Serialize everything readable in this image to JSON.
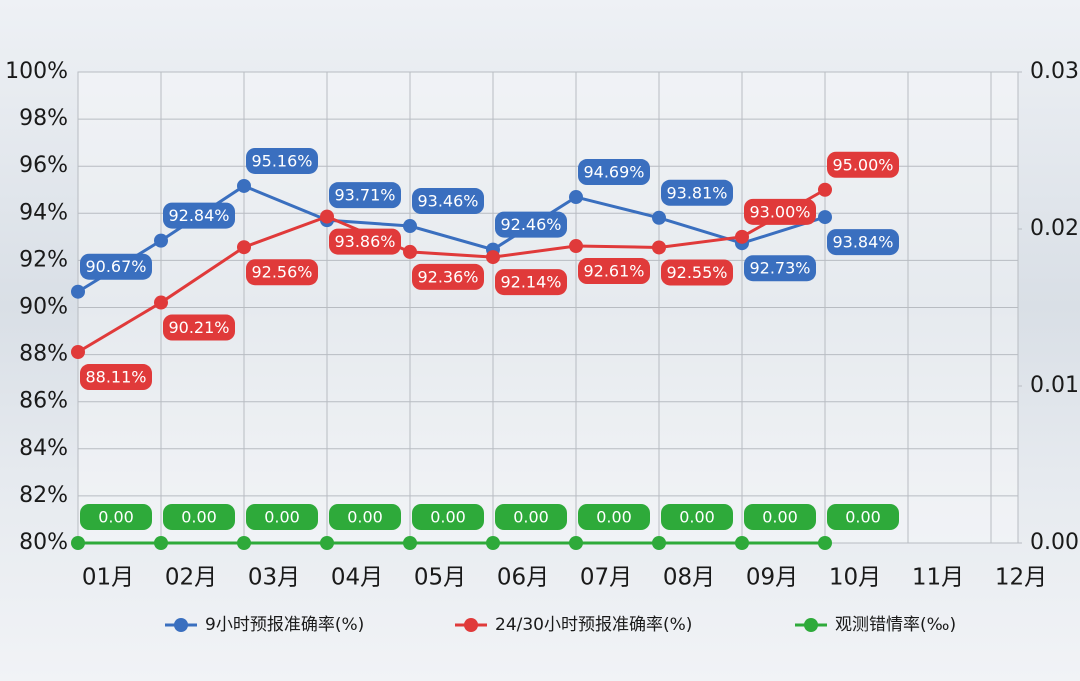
{
  "chart_data": {
    "type": "line",
    "categories": [
      "01月",
      "02月",
      "03月",
      "04月",
      "05月",
      "06月",
      "07月",
      "08月",
      "09月",
      "10月",
      "11月",
      "12月"
    ],
    "ylim": [
      80,
      100
    ],
    "yticks": [
      {
        "value": 80,
        "label": "80%"
      },
      {
        "value": 82,
        "label": "82%"
      },
      {
        "value": 84,
        "label": "84%"
      },
      {
        "value": 86,
        "label": "86%"
      },
      {
        "value": 88,
        "label": "88%"
      },
      {
        "value": 90,
        "label": "90%"
      },
      {
        "value": 92,
        "label": "92%"
      },
      {
        "value": 94,
        "label": "94%"
      },
      {
        "value": 96,
        "label": "96%"
      },
      {
        "value": 98,
        "label": "98%"
      },
      {
        "value": 100,
        "label": "100%"
      }
    ],
    "y2lim": [
      0,
      0.03
    ],
    "y2ticks": [
      {
        "value": 0,
        "label": "0.00"
      },
      0.01,
      0.02,
      0.03
    ],
    "grid": true,
    "legend": "bottom",
    "series": [
      {
        "name": "9小时预报准确率(%)",
        "color": "#3a6fbf",
        "values": [
          90.67,
          92.84,
          95.16,
          93.71,
          93.46,
          92.46,
          94.69,
          93.81,
          92.73,
          93.84,
          null,
          null
        ],
        "value_labels": [
          "90.67%",
          "92.84%",
          "95.16%",
          "93.71%",
          "93.46%",
          "92.46%",
          "94.69%",
          "93.81%",
          "92.73%",
          "93.84%",
          null,
          null
        ]
      },
      {
        "name": "24/30小时预报准确率(%)",
        "color": "#e03a3a",
        "values": [
          88.11,
          90.21,
          92.56,
          93.86,
          92.36,
          92.14,
          92.61,
          92.55,
          93.0,
          95.0,
          null,
          null
        ],
        "value_labels": [
          "88.11%",
          "90.21%",
          "92.56%",
          "93.86%",
          "92.36%",
          "92.14%",
          "92.61%",
          "92.55%",
          "93.00%",
          "95.00%",
          null,
          null
        ]
      },
      {
        "name": "观测错情率(‰)",
        "color": "#2eaa3a",
        "axis": "y2",
        "values": [
          0,
          0,
          0,
          0,
          0,
          0,
          0,
          0,
          0,
          0,
          null,
          null
        ],
        "value_labels": [
          "0.00",
          "0.00",
          "0.00",
          "0.00",
          "0.00",
          "0.00",
          "0.00",
          "0.00",
          "0.00",
          "0.00",
          null,
          null
        ]
      }
    ]
  }
}
